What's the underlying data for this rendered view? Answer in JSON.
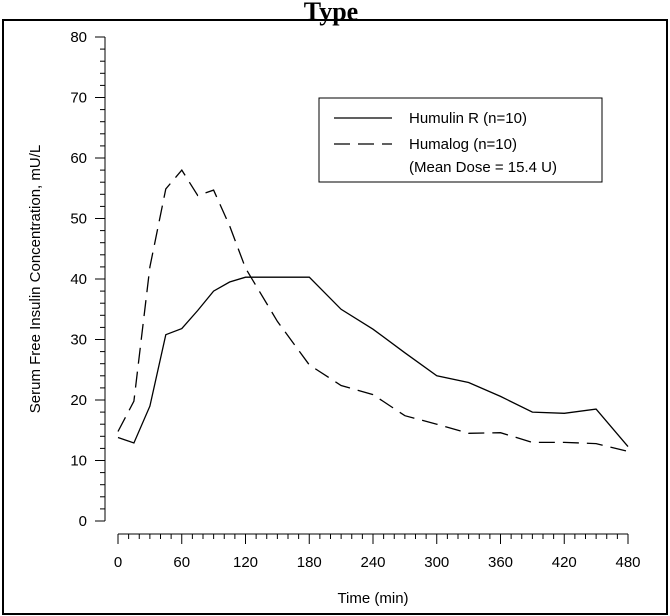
{
  "chart_data": {
    "type": "line",
    "title": "Type",
    "xlabel": "Time (min)",
    "ylabel": "Serum Free Insulin Concentration, mU/L",
    "xlim": [
      0,
      480
    ],
    "ylim": [
      0,
      80
    ],
    "x_ticks": [
      0,
      60,
      120,
      180,
      240,
      300,
      360,
      420,
      480
    ],
    "y_ticks": [
      0,
      10,
      20,
      30,
      40,
      50,
      60,
      70,
      80
    ],
    "x_tick_labels": [
      "0",
      "60",
      "120",
      "180",
      "240",
      "300",
      "360",
      "420",
      "480"
    ],
    "y_tick_labels": [
      "0",
      "10",
      "20",
      "30",
      "40",
      "50",
      "60",
      "70",
      "80"
    ],
    "grid": false,
    "legend_position": "top-right",
    "legend_note": "(Mean Dose = 15.4 U)",
    "series": [
      {
        "name": "Humulin R (n=10)",
        "style": "solid",
        "x": [
          0,
          15,
          30,
          45,
          60,
          75,
          90,
          105,
          120,
          150,
          180,
          210,
          240,
          270,
          300,
          330,
          360,
          390,
          420,
          450,
          480
        ],
        "y": [
          13.8,
          12.9,
          19.0,
          30.8,
          31.8,
          34.8,
          38.0,
          39.5,
          40.3,
          40.3,
          40.3,
          35.0,
          31.7,
          27.8,
          24.0,
          22.9,
          20.6,
          18.0,
          17.8,
          18.5,
          12.3
        ]
      },
      {
        "name": "Humalog (n=10)",
        "style": "dashed",
        "x": [
          0,
          15,
          30,
          45,
          60,
          75,
          90,
          105,
          120,
          150,
          180,
          210,
          240,
          270,
          300,
          330,
          360,
          390,
          420,
          450,
          480
        ],
        "y": [
          14.8,
          19.8,
          42.0,
          54.9,
          58.0,
          53.8,
          54.7,
          48.8,
          41.8,
          33.0,
          25.8,
          22.4,
          20.9,
          17.4,
          16.0,
          14.5,
          14.6,
          13.0,
          13.0,
          12.8,
          11.5
        ]
      }
    ]
  }
}
